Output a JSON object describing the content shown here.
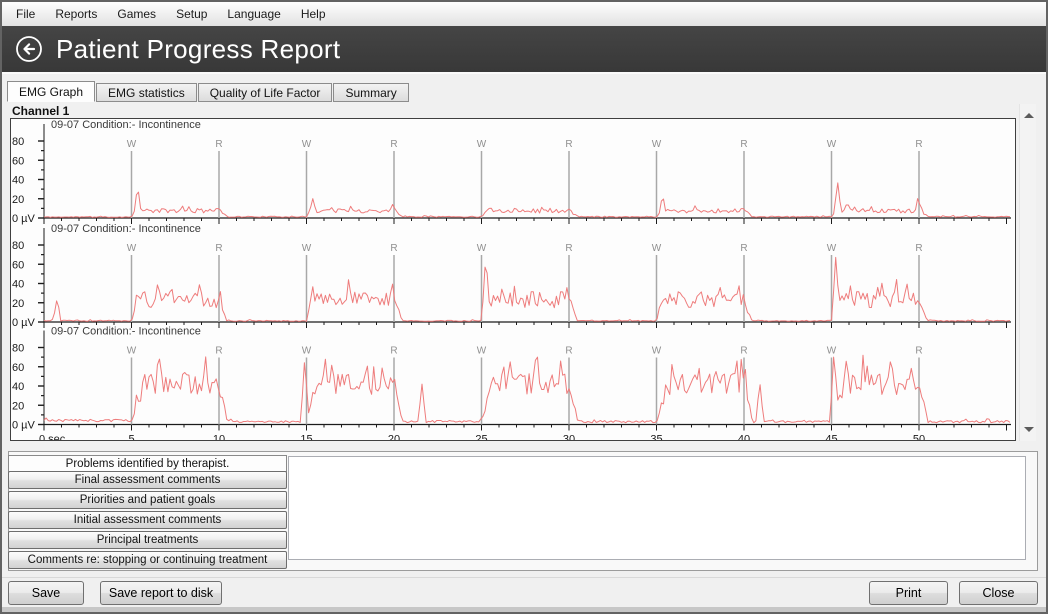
{
  "menu": {
    "items": [
      "File",
      "Reports",
      "Games",
      "Setup",
      "Language",
      "Help"
    ]
  },
  "header": {
    "title": "Patient Progress Report",
    "back_icon": "back-arrow-circle"
  },
  "tabs": [
    {
      "label": "EMG Graph",
      "active": true
    },
    {
      "label": "EMG statistics",
      "active": false
    },
    {
      "label": "Quality of Life Factor",
      "active": false
    },
    {
      "label": "Summary",
      "active": false
    }
  ],
  "chart_data": {
    "type": "line",
    "channel": "Channel 1",
    "y_unit": "µV",
    "y_zero_label": "0 µV",
    "y_ticks": [
      0,
      20,
      40,
      60,
      80
    ],
    "y_minor_ticks": [
      10,
      30,
      50,
      70
    ],
    "y_max": 88,
    "x_origin_label": "0 sec",
    "x_major_ticks_sec": [
      0,
      5,
      10,
      15,
      20,
      25,
      30,
      35,
      40,
      45,
      50
    ],
    "x_minor_step_sec": 1,
    "x_end_sec": 55.2,
    "grid": false,
    "legend": "none",
    "trace_color": "#ee7c7c",
    "marker_color": "#a8a8a8",
    "marker_label_color": "#8f8f8f",
    "markers": [
      {
        "t": 5,
        "label": "W"
      },
      {
        "t": 10,
        "label": "R"
      },
      {
        "t": 15,
        "label": "W"
      },
      {
        "t": 20,
        "label": "R"
      },
      {
        "t": 25,
        "label": "W"
      },
      {
        "t": 30,
        "label": "R"
      },
      {
        "t": 35,
        "label": "W"
      },
      {
        "t": 40,
        "label": "R"
      },
      {
        "t": 45,
        "label": "W"
      },
      {
        "t": 50,
        "label": "R"
      }
    ],
    "work_windows_sec": [
      [
        5,
        10
      ],
      [
        15,
        20
      ],
      [
        25,
        30
      ],
      [
        35,
        40
      ],
      [
        45,
        50
      ]
    ],
    "panels": [
      {
        "title": "09-07 Condition:- Incontinence",
        "seed": 11,
        "pre_uv": [
          1.0,
          0.45
        ],
        "work_uv": [
          7.5,
          2.3
        ],
        "rest_uv": [
          1.3,
          0.55
        ],
        "rise_sec": 0.25,
        "fall_sec": 0.5,
        "spikes": [
          [
            5.35,
            34
          ],
          [
            9.9,
            13
          ],
          [
            15.35,
            21
          ],
          [
            16.4,
            13
          ],
          [
            19.95,
            16
          ],
          [
            25.4,
            12
          ],
          [
            28.9,
            11
          ],
          [
            35.35,
            25
          ],
          [
            39.9,
            13
          ],
          [
            45.35,
            38
          ],
          [
            45.9,
            18
          ],
          [
            49.95,
            23
          ]
        ]
      },
      {
        "title": "09-07 Condition:- Incontinence",
        "seed": 22,
        "pre_uv": [
          1.4,
          0.6
        ],
        "work_uv": [
          23,
          8.5
        ],
        "rest_uv": [
          1.2,
          0.5
        ],
        "rise_sec": 0.3,
        "fall_sec": 0.45,
        "spikes": [
          [
            0.75,
            25
          ],
          [
            6.5,
            42
          ],
          [
            7.3,
            37
          ],
          [
            17.4,
            44
          ],
          [
            18.3,
            40
          ],
          [
            19.9,
            43
          ],
          [
            25.25,
            72
          ],
          [
            26.2,
            41
          ],
          [
            27.9,
            42
          ],
          [
            29.9,
            39
          ],
          [
            36.3,
            40
          ],
          [
            38.6,
            43
          ],
          [
            39.7,
            41
          ],
          [
            45.25,
            70
          ],
          [
            46.5,
            42
          ],
          [
            47.9,
            44
          ],
          [
            49.3,
            43
          ]
        ]
      },
      {
        "title": "09-07 Condition:- Incontinence",
        "seed": 33,
        "pre_uv": [
          4.2,
          1.4
        ],
        "work_uv": [
          42,
          11
        ],
        "rest_uv": [
          3.0,
          1.2
        ],
        "rise_sec": 0.7,
        "fall_sec": 0.5,
        "spikes": [
          [
            6.6,
            68
          ],
          [
            8.2,
            62
          ],
          [
            14.9,
            70
          ],
          [
            16.1,
            74
          ],
          [
            19.3,
            64
          ],
          [
            21.6,
            42
          ],
          [
            26.6,
            78
          ],
          [
            28.2,
            70
          ],
          [
            29.5,
            72
          ],
          [
            35.9,
            68
          ],
          [
            37.4,
            70
          ],
          [
            39.6,
            66
          ],
          [
            40.9,
            45
          ],
          [
            45.15,
            80
          ],
          [
            46.8,
            72
          ],
          [
            48.4,
            78
          ],
          [
            49.6,
            70
          ]
        ]
      }
    ]
  },
  "comments": {
    "selected_tab": "Problems identified by therapist.",
    "buttons": [
      "Final assessment comments",
      "Priorities and patient goals",
      "Initial assessment comments",
      "Principal treatments",
      "Comments re: stopping or continuing treatment"
    ],
    "textarea_value": ""
  },
  "footer": {
    "save": "Save",
    "save_to_disk": "Save report to disk",
    "print": "Print",
    "close": "Close"
  },
  "colors": {
    "title_bar": "#3e3e3e",
    "menu_bar": "#f2f2f2",
    "trace": "#ee7c7c",
    "marker": "#a8a8a8"
  }
}
